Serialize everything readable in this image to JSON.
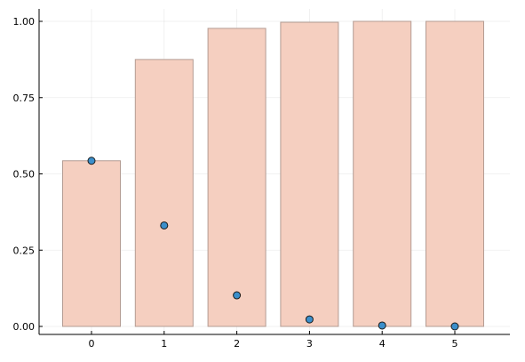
{
  "chart_data": {
    "type": "bar",
    "categories": [
      "0",
      "1",
      "2",
      "3",
      "4",
      "5"
    ],
    "series": [
      {
        "type": "bar",
        "values": [
          0.543,
          0.875,
          0.977,
          0.997,
          1.0,
          1.0
        ]
      },
      {
        "type": "scatter",
        "values": [
          0.543,
          0.331,
          0.102,
          0.023,
          0.003,
          0.0
        ]
      }
    ],
    "ylim": [
      0,
      1
    ],
    "yticks": [
      0.0,
      0.25,
      0.5,
      0.75,
      1.0
    ],
    "ytick_labels": [
      "0.00",
      "0.25",
      "0.50",
      "0.75",
      "1.00"
    ],
    "grid": true,
    "legend": "none",
    "title": "",
    "xlabel": "",
    "ylabel": "",
    "colors": {
      "bar_fill": "#f5cfc0",
      "bar_stroke": "#b49c93",
      "marker_fill": "#3b8fcb",
      "marker_stroke": "#1a1a1a"
    }
  }
}
